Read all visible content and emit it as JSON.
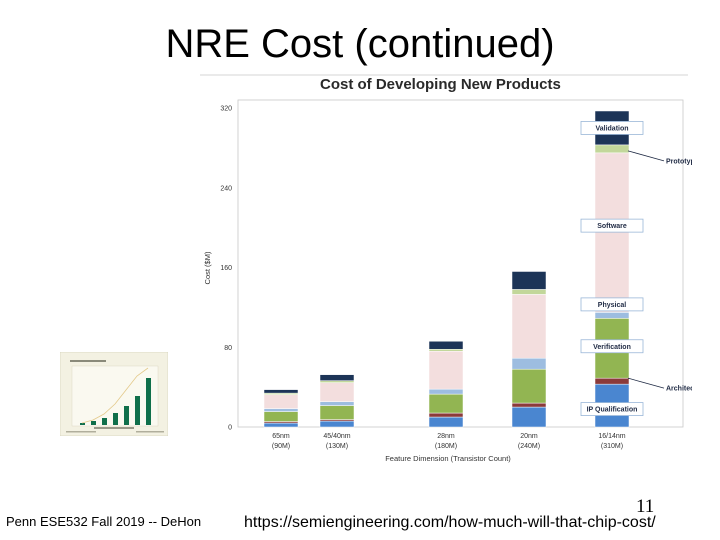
{
  "slide": {
    "title": "NRE Cost (continued)",
    "footer_left": "Penn ESE532 Fall 2019 -- DeHon",
    "slide_number": "11",
    "source_url": "https://semiengineering.com/how-much-will-that-chip-cost/"
  },
  "colors": {
    "ip_qualification": "#4a86d0",
    "architecture": "#8b3a3a",
    "verification": "#92b552",
    "physical": "#9dbde0",
    "software": "#f3dede",
    "prototype": "#c2d79a",
    "validation": "#1c3457"
  },
  "chart_data": {
    "type": "bar",
    "title": "Cost of Developing New Products",
    "xlabel": "Feature Dimension (Transistor Count)",
    "ylabel": "Cost ($M)",
    "ylim": [
      0,
      320
    ],
    "yticks": [
      0,
      80,
      160,
      240,
      320
    ],
    "categories": [
      {
        "line1": "65nm",
        "line2": "(90M)"
      },
      {
        "line1": "45/40nm",
        "line2": "(130M)"
      },
      {
        "line1": "28nm",
        "line2": "(180M)"
      },
      {
        "line1": "20nm",
        "line2": "(240M)"
      },
      {
        "line1": "16/14nm",
        "line2": "(310M)"
      }
    ],
    "series": [
      {
        "key": "ip_qualification",
        "name": "IP Qualification",
        "values": [
          4,
          6,
          10,
          20,
          43
        ]
      },
      {
        "key": "architecture",
        "name": "Architecture",
        "values": [
          1.5,
          1.5,
          4,
          4,
          6
        ]
      },
      {
        "key": "verification",
        "name": "Verification",
        "values": [
          10,
          14,
          19,
          34,
          60
        ]
      },
      {
        "key": "physical",
        "name": "Physical",
        "values": [
          3,
          4,
          5,
          11,
          6
        ]
      },
      {
        "key": "software",
        "name": "Software",
        "values": [
          14,
          19,
          38,
          64,
          160
        ]
      },
      {
        "key": "prototype",
        "name": "Prototype",
        "values": [
          1.5,
          2,
          2,
          5,
          8
        ]
      },
      {
        "key": "validation",
        "name": "Validation",
        "values": [
          3.5,
          6,
          8,
          18,
          34
        ]
      }
    ],
    "callouts": [
      {
        "label": "Validation",
        "value": 300
      },
      {
        "label": "Prototype",
        "value": 280,
        "pointer": true
      },
      {
        "label": "Software",
        "value": 202
      },
      {
        "label": "Physical",
        "value": 123
      },
      {
        "label": "Verification",
        "value": 81
      },
      {
        "label": "Architecture",
        "value": 52,
        "pointer": true
      },
      {
        "label": "IP Qualification",
        "value": 18
      }
    ],
    "legend": "callouts-right"
  }
}
